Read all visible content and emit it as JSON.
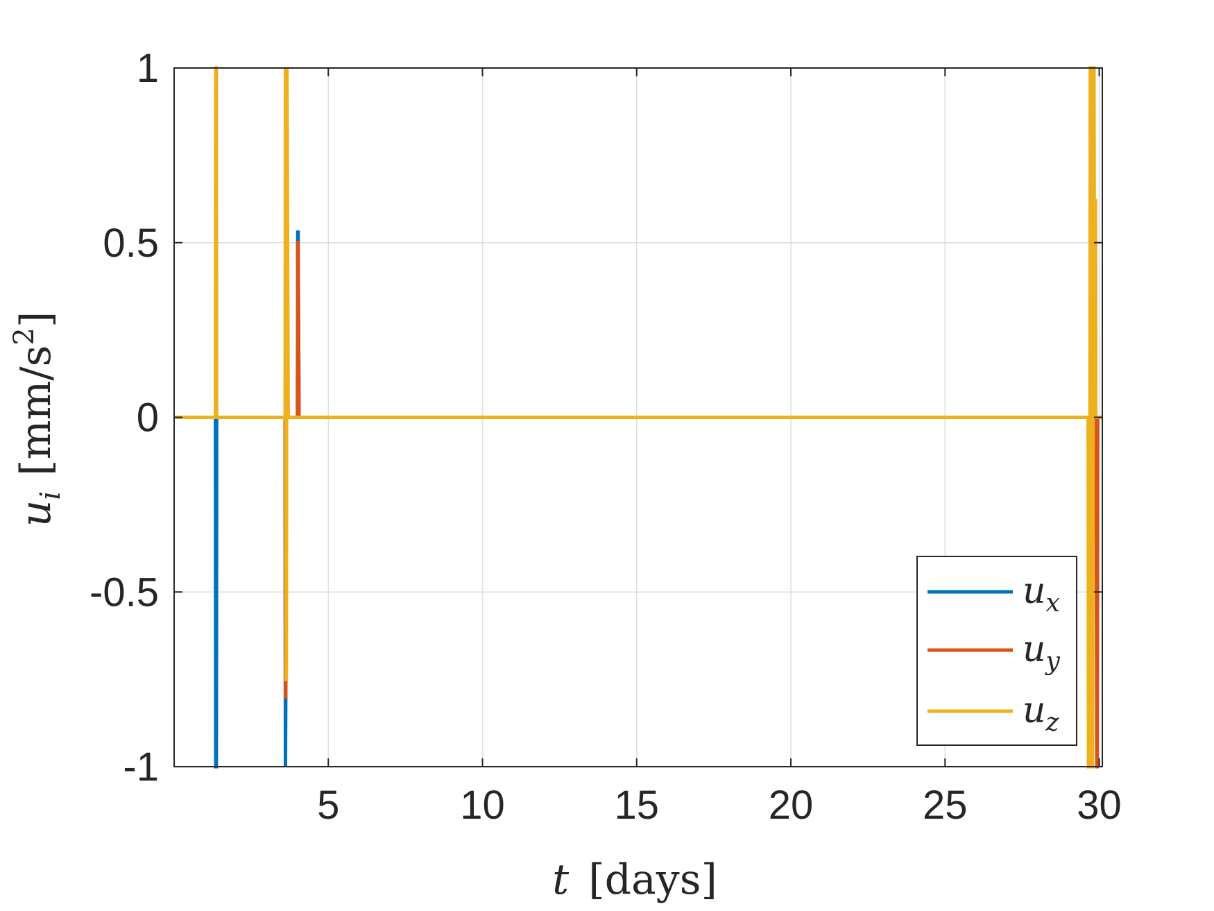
{
  "chart_data": {
    "type": "line",
    "xlabel": {
      "var": "t",
      "unit": "[days]"
    },
    "ylabel": {
      "var": "u",
      "sub": "i",
      "unit_open": "[mm/s",
      "unit_sup": "2",
      "unit_close": "]"
    },
    "xlim": [
      0,
      30.1
    ],
    "ylim": [
      -1,
      1
    ],
    "xticks": [
      5,
      10,
      15,
      20,
      25,
      30
    ],
    "yticks": [
      -1,
      -0.5,
      0,
      0.5,
      1
    ],
    "xtick_labels": [
      "5",
      "10",
      "15",
      "20",
      "25",
      "30"
    ],
    "ytick_labels": [
      "-1",
      "-0.5",
      "0",
      "0.5",
      "1"
    ],
    "grid": true,
    "legend_position": "bottom-right",
    "series": [
      {
        "name": "u_x",
        "label_base": "u",
        "label_sub": "x",
        "color": "#0072BD",
        "x": [
          0,
          1.34,
          1.35,
          1.37,
          1.38,
          3.6,
          3.61,
          3.62,
          3.63,
          3.66,
          4.0,
          4.01,
          4.02,
          4.05,
          30.1
        ],
        "y": [
          0,
          0,
          -1,
          -1,
          0,
          0,
          -1,
          -0.8,
          0,
          0,
          0,
          0.53,
          0.53,
          0,
          0
        ]
      },
      {
        "name": "u_y",
        "label_base": "u",
        "label_sub": "y",
        "color": "#D95319",
        "x": [
          0,
          3.6,
          3.61,
          3.62,
          3.63,
          3.66,
          4.0,
          4.01,
          4.02,
          4.05,
          29.7,
          29.72,
          29.73,
          29.75,
          29.9,
          29.92,
          29.93,
          29.95,
          30.1
        ],
        "y": [
          0,
          0,
          -0.8,
          -0.8,
          1,
          0,
          0,
          0.5,
          0.5,
          0,
          0,
          -1,
          -1,
          0,
          0,
          -1,
          -1,
          0,
          0
        ]
      },
      {
        "name": "u_z",
        "label_base": "u",
        "label_sub": "z",
        "color": "#EDB120",
        "x": [
          0,
          1.34,
          1.35,
          1.37,
          1.38,
          3.6,
          3.61,
          3.63,
          3.64,
          3.66,
          3.7,
          29.64,
          29.65,
          29.67,
          29.7,
          29.71,
          29.73,
          29.75,
          29.76,
          29.78,
          29.8,
          29.81,
          29.83,
          29.85,
          29.86,
          29.88,
          29.89,
          30.1
        ],
        "y": [
          0,
          0,
          1,
          1,
          0,
          0,
          1,
          -0.75,
          -0.75,
          1,
          0,
          0,
          -1,
          -1,
          0,
          1,
          1,
          0,
          -1,
          -1,
          0,
          1,
          1,
          0,
          0.62,
          0.62,
          0,
          0
        ]
      }
    ]
  }
}
